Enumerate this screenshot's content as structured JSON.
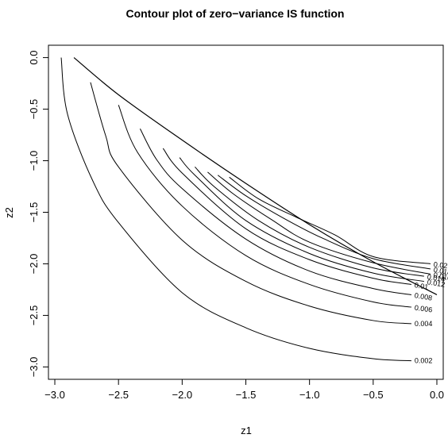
{
  "chart_data": {
    "type": "contour",
    "title": "Contour plot of zero−variance IS function",
    "xlabel": "z1",
    "ylabel": "z2",
    "xlim": [
      -3.05,
      0.05
    ],
    "ylim": [
      -3.12,
      0.12
    ],
    "x_ticks": [
      {
        "value": -3.0,
        "label": "−3.0"
      },
      {
        "value": -2.5,
        "label": "−2.5"
      },
      {
        "value": -2.0,
        "label": "−2.0"
      },
      {
        "value": -1.5,
        "label": "−1.5"
      },
      {
        "value": -1.0,
        "label": "−1.0"
      },
      {
        "value": -0.5,
        "label": "−0.5"
      },
      {
        "value": 0.0,
        "label": "0.0"
      }
    ],
    "y_ticks": [
      {
        "value": 0.0,
        "label": "0.0"
      },
      {
        "value": -0.5,
        "label": "−0.5"
      },
      {
        "value": -1.0,
        "label": "−1.0"
      },
      {
        "value": -1.5,
        "label": "−1.5"
      },
      {
        "value": -2.0,
        "label": "−2.0"
      },
      {
        "value": -2.5,
        "label": "−2.5"
      },
      {
        "value": -3.0,
        "label": "−3.0"
      }
    ],
    "grid": false,
    "line_color": "#000000",
    "boundary": {
      "x": [
        -2.85,
        -2.5,
        -2.0,
        -1.5,
        -1.0,
        -0.5,
        0.0
      ],
      "y": [
        0.0,
        -0.36,
        -0.8,
        -1.22,
        -1.62,
        -1.98,
        -2.3
      ]
    },
    "levels": [
      {
        "level": 0.002,
        "label": "0.002",
        "x": [
          -2.95,
          -2.9,
          -2.7,
          -2.5,
          -2.0,
          -1.5,
          -1.0,
          -0.5,
          -0.2
        ],
        "y": [
          0.0,
          -0.55,
          -1.2,
          -1.6,
          -2.28,
          -2.62,
          -2.82,
          -2.92,
          -2.94
        ]
      },
      {
        "level": 0.004,
        "label": "0.004",
        "x": [
          -2.72,
          -2.6,
          -2.5,
          -2.0,
          -1.5,
          -1.0,
          -0.5,
          -0.2
        ],
        "y": [
          -0.24,
          -0.76,
          -1.06,
          -1.77,
          -2.17,
          -2.41,
          -2.55,
          -2.58
        ]
      },
      {
        "level": 0.006,
        "label": "0.006",
        "x": [
          -2.5,
          -2.35,
          -2.0,
          -1.5,
          -1.0,
          -0.5,
          -0.2
        ],
        "y": [
          -0.46,
          -0.92,
          -1.44,
          -1.92,
          -2.2,
          -2.37,
          -2.42
        ]
      },
      {
        "level": 0.008,
        "label": "0.008",
        "x": [
          -2.33,
          -2.2,
          -2.0,
          -1.5,
          -1.0,
          -0.5,
          -0.2
        ],
        "y": [
          -0.69,
          -0.99,
          -1.27,
          -1.76,
          -2.07,
          -2.24,
          -2.3
        ]
      },
      {
        "level": 0.01,
        "label": "0.01",
        "x": [
          -2.15,
          -2.0,
          -1.5,
          -1.0,
          -0.5,
          -0.2
        ],
        "y": [
          -0.88,
          -1.12,
          -1.66,
          -1.96,
          -2.14,
          -2.2
        ]
      },
      {
        "level": 0.012,
        "label": "0.012",
        "x": [
          -2.02,
          -1.9,
          -1.5,
          -1.0,
          -0.5,
          -0.1
        ],
        "y": [
          -0.97,
          -1.14,
          -1.58,
          -1.9,
          -2.09,
          -2.17
        ]
      },
      {
        "level": 0.014,
        "label": "0.014",
        "x": [
          -1.9,
          -1.75,
          -1.4,
          -1.0,
          -0.5,
          -0.1
        ],
        "y": [
          -1.06,
          -1.25,
          -1.58,
          -1.84,
          -2.04,
          -2.12
        ]
      },
      {
        "level": 0.016,
        "label": "0.016",
        "x": [
          -1.8,
          -1.6,
          -1.3,
          -1.0,
          -0.5,
          -0.05
        ],
        "y": [
          -1.11,
          -1.32,
          -1.57,
          -1.79,
          -1.99,
          -2.1
        ]
      },
      {
        "level": 0.018,
        "label": "0.018",
        "x": [
          -1.72,
          -1.5,
          -1.2,
          -0.9,
          -0.5,
          -0.05
        ],
        "y": [
          -1.14,
          -1.34,
          -1.56,
          -1.75,
          -1.95,
          -2.05
        ]
      },
      {
        "level": 0.02,
        "label": "0.02",
        "x": [
          -1.63,
          -1.4,
          -1.1,
          -0.8,
          -0.5,
          -0.05
        ],
        "y": [
          -1.16,
          -1.37,
          -1.55,
          -1.72,
          -1.93,
          -2.0
        ]
      }
    ]
  }
}
